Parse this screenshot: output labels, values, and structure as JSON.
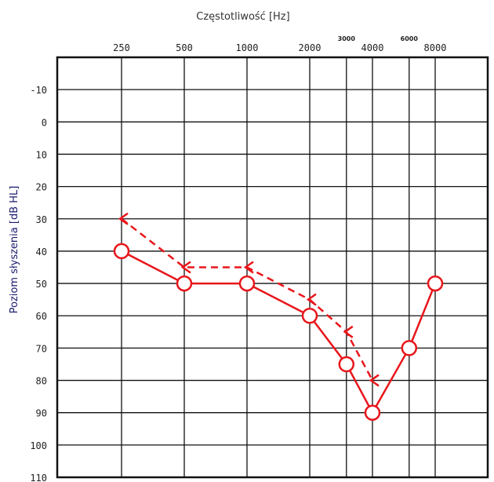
{
  "chart_data": {
    "type": "line",
    "title": "",
    "xlabel": "Częstotliwość [Hz]",
    "ylabel": "Poziom słyszenia [dB HL]",
    "x_ticks_main": [
      "250",
      "500",
      "1000",
      "2000",
      "4000",
      "8000"
    ],
    "x_ticks_intermediate": [
      "3000",
      "6000"
    ],
    "y_ticks": [
      "-10",
      "0",
      "10",
      "20",
      "30",
      "40",
      "50",
      "60",
      "70",
      "80",
      "90",
      "100",
      "110"
    ],
    "ylim": [
      -20,
      110
    ],
    "y_inverted": true,
    "grid": true,
    "colors": {
      "series": "#e8161b",
      "grid": "#111111"
    },
    "series": [
      {
        "style": "solid-circles",
        "points": [
          {
            "x": 250,
            "y": 40
          },
          {
            "x": 500,
            "y": 50
          },
          {
            "x": 1000,
            "y": 50
          },
          {
            "x": 2000,
            "y": 60
          },
          {
            "x": 3000,
            "y": 75
          },
          {
            "x": 4000,
            "y": 90
          },
          {
            "x": 6000,
            "y": 70
          },
          {
            "x": 8000,
            "y": 50
          }
        ]
      },
      {
        "style": "dashed-brackets",
        "points": [
          {
            "x": 250,
            "y": 30
          },
          {
            "x": 500,
            "y": 45
          },
          {
            "x": 1000,
            "y": 45
          },
          {
            "x": 2000,
            "y": 55
          },
          {
            "x": 3000,
            "y": 65
          },
          {
            "x": 4000,
            "y": 80
          }
        ]
      }
    ]
  }
}
